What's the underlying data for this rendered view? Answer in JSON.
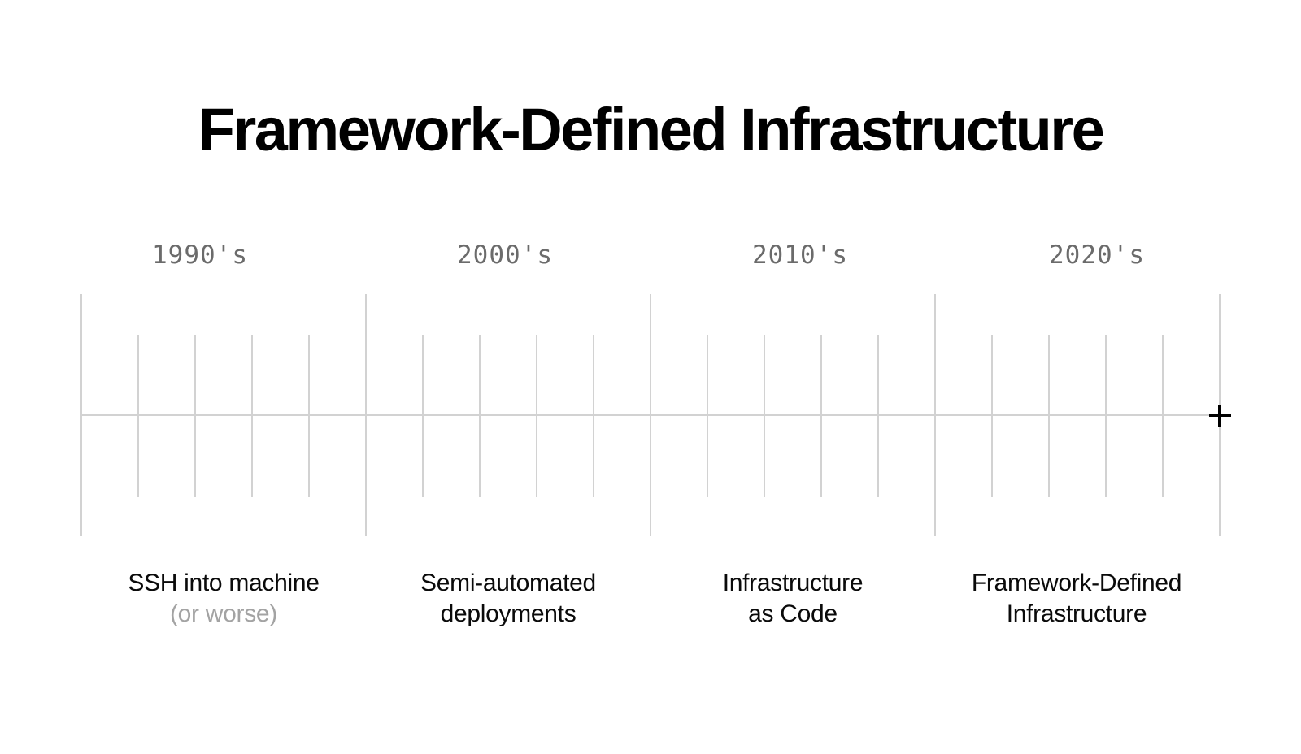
{
  "title": "Framework-Defined Infrastructure",
  "timeline": {
    "decades": [
      {
        "label": "1990's",
        "caption_lines": [
          "SSH into machine",
          "(or worse)"
        ]
      },
      {
        "label": "2000's",
        "caption_lines": [
          "Semi-automated",
          "deployments"
        ]
      },
      {
        "label": "2010's",
        "caption_lines": [
          "Infrastructure",
          "as Code"
        ]
      },
      {
        "label": "2020's",
        "caption_lines": [
          "Framework-Defined",
          "Infrastructure"
        ]
      }
    ],
    "end_marker_symbol": "+"
  },
  "colors": {
    "background": "#ffffff",
    "title_text": "#000000",
    "caption_text": "#0a0a0a",
    "caption_muted": "#a3a3a3",
    "decade_label": "#6b6b6b",
    "timeline_line": "#d2d2d2",
    "end_marker": "#000000"
  }
}
